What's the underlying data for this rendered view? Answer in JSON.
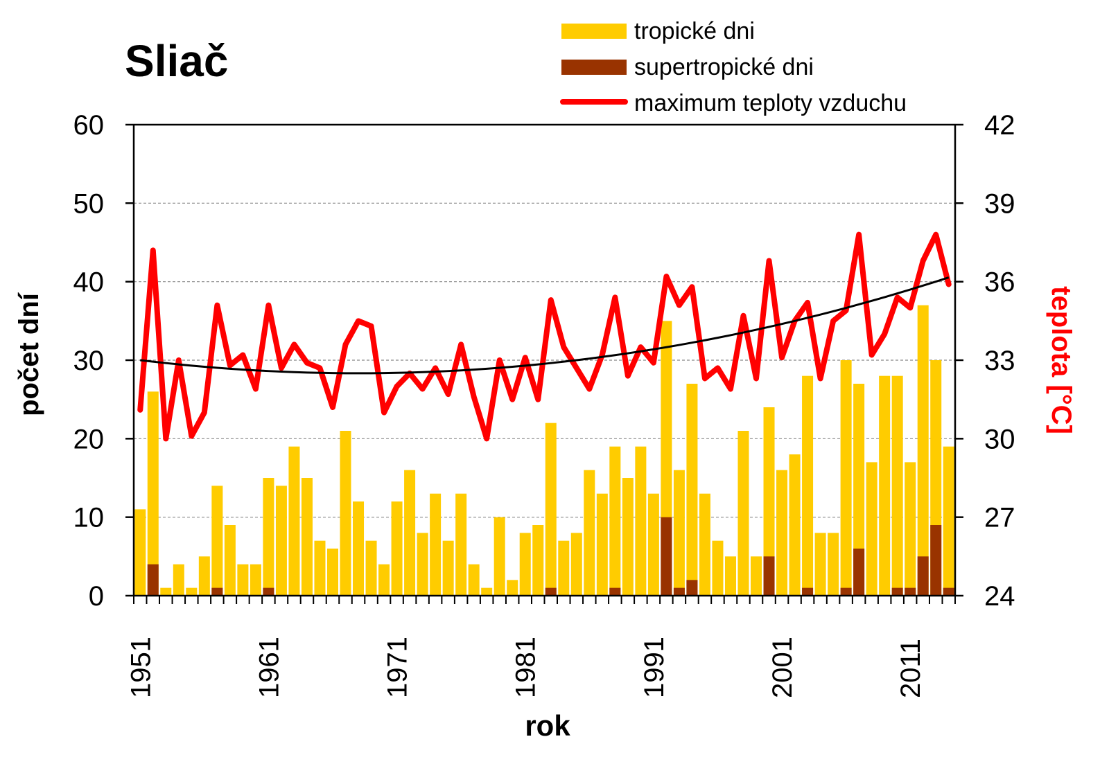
{
  "chart_data": {
    "type": "bar+line",
    "title": "Sliač",
    "xlabel": "rok",
    "ylabel": "počet dní",
    "y2label": "teplota [°C]",
    "ylim": [
      0,
      60
    ],
    "y2lim": [
      24,
      42
    ],
    "yticks": [
      0,
      10,
      20,
      30,
      40,
      50,
      60
    ],
    "y2ticks": [
      24,
      27,
      30,
      33,
      36,
      39,
      42
    ],
    "xtick_labels": [
      "1951",
      "1961",
      "1971",
      "1981",
      "1991",
      "2001",
      "2011"
    ],
    "grid": "horizontal dashed",
    "legend_position": "top-right",
    "legend": [
      "tropické dni",
      "supertropické dni",
      "maximum teploty vzduchu"
    ],
    "colors": {
      "tropical": "#FFCC00",
      "supertropical": "#993300",
      "maxtemp": "#FF0000",
      "trend": "#000000"
    },
    "x": [
      1951,
      1952,
      1953,
      1954,
      1955,
      1956,
      1957,
      1958,
      1959,
      1960,
      1961,
      1962,
      1963,
      1964,
      1965,
      1966,
      1967,
      1968,
      1969,
      1970,
      1971,
      1972,
      1973,
      1974,
      1975,
      1976,
      1977,
      1978,
      1979,
      1980,
      1981,
      1982,
      1983,
      1984,
      1985,
      1986,
      1987,
      1988,
      1989,
      1990,
      1991,
      1992,
      1993,
      1994,
      1995,
      1996,
      1997,
      1998,
      1999,
      2000,
      2001,
      2002,
      2003,
      2004,
      2005,
      2006,
      2007,
      2008,
      2009,
      2010,
      2011,
      2012,
      2013,
      2014
    ],
    "series": [
      {
        "name": "tropické dni",
        "axis": "left",
        "type": "bar",
        "values": [
          11,
          26,
          1,
          4,
          1,
          5,
          14,
          9,
          4,
          4,
          15,
          14,
          19,
          15,
          7,
          6,
          21,
          12,
          7,
          4,
          12,
          16,
          8,
          13,
          7,
          13,
          4,
          1,
          10,
          2,
          8,
          9,
          22,
          7,
          8,
          16,
          13,
          19,
          15,
          19,
          13,
          35,
          16,
          27,
          13,
          7,
          5,
          21,
          5,
          24,
          16,
          18,
          28,
          8,
          8,
          30,
          27,
          17,
          28,
          28,
          17,
          37,
          30,
          19
        ]
      },
      {
        "name": "supertropické dni",
        "axis": "left",
        "type": "bar",
        "values": [
          0,
          4,
          0,
          0,
          0,
          0,
          1,
          0,
          0,
          0,
          1,
          0,
          0,
          0,
          0,
          0,
          0,
          0,
          0,
          0,
          0,
          0,
          0,
          0,
          0,
          0,
          0,
          0,
          0,
          0,
          0,
          0,
          1,
          0,
          0,
          0,
          0,
          1,
          0,
          0,
          0,
          10,
          1,
          2,
          0,
          0,
          0,
          0,
          0,
          5,
          0,
          0,
          1,
          0,
          0,
          1,
          6,
          0,
          0,
          1,
          1,
          5,
          9,
          1
        ]
      },
      {
        "name": "maximum teploty vzduchu",
        "axis": "right",
        "type": "line",
        "values": [
          31.1,
          37.2,
          30.0,
          33.0,
          30.1,
          31.0,
          35.1,
          32.8,
          33.2,
          31.9,
          35.1,
          32.7,
          33.6,
          32.9,
          32.7,
          31.2,
          33.6,
          34.5,
          34.3,
          31.0,
          32.0,
          32.5,
          31.9,
          32.7,
          31.7,
          33.6,
          31.6,
          30.0,
          33.0,
          31.5,
          33.1,
          31.5,
          35.3,
          33.5,
          32.7,
          31.9,
          33.2,
          35.4,
          32.4,
          33.5,
          32.9,
          36.2,
          35.1,
          35.8,
          32.3,
          32.7,
          31.9,
          34.7,
          32.3,
          36.8,
          33.1,
          34.5,
          35.2,
          32.3,
          34.5,
          34.9,
          37.8,
          33.2,
          34.0,
          35.4,
          35.0,
          36.8,
          37.8,
          35.9
        ]
      }
    ],
    "trend": {
      "axis": "right",
      "type": "poly2",
      "vertex_year": 1968,
      "vertex_value": 32.5,
      "coef": 0.00173
    }
  }
}
